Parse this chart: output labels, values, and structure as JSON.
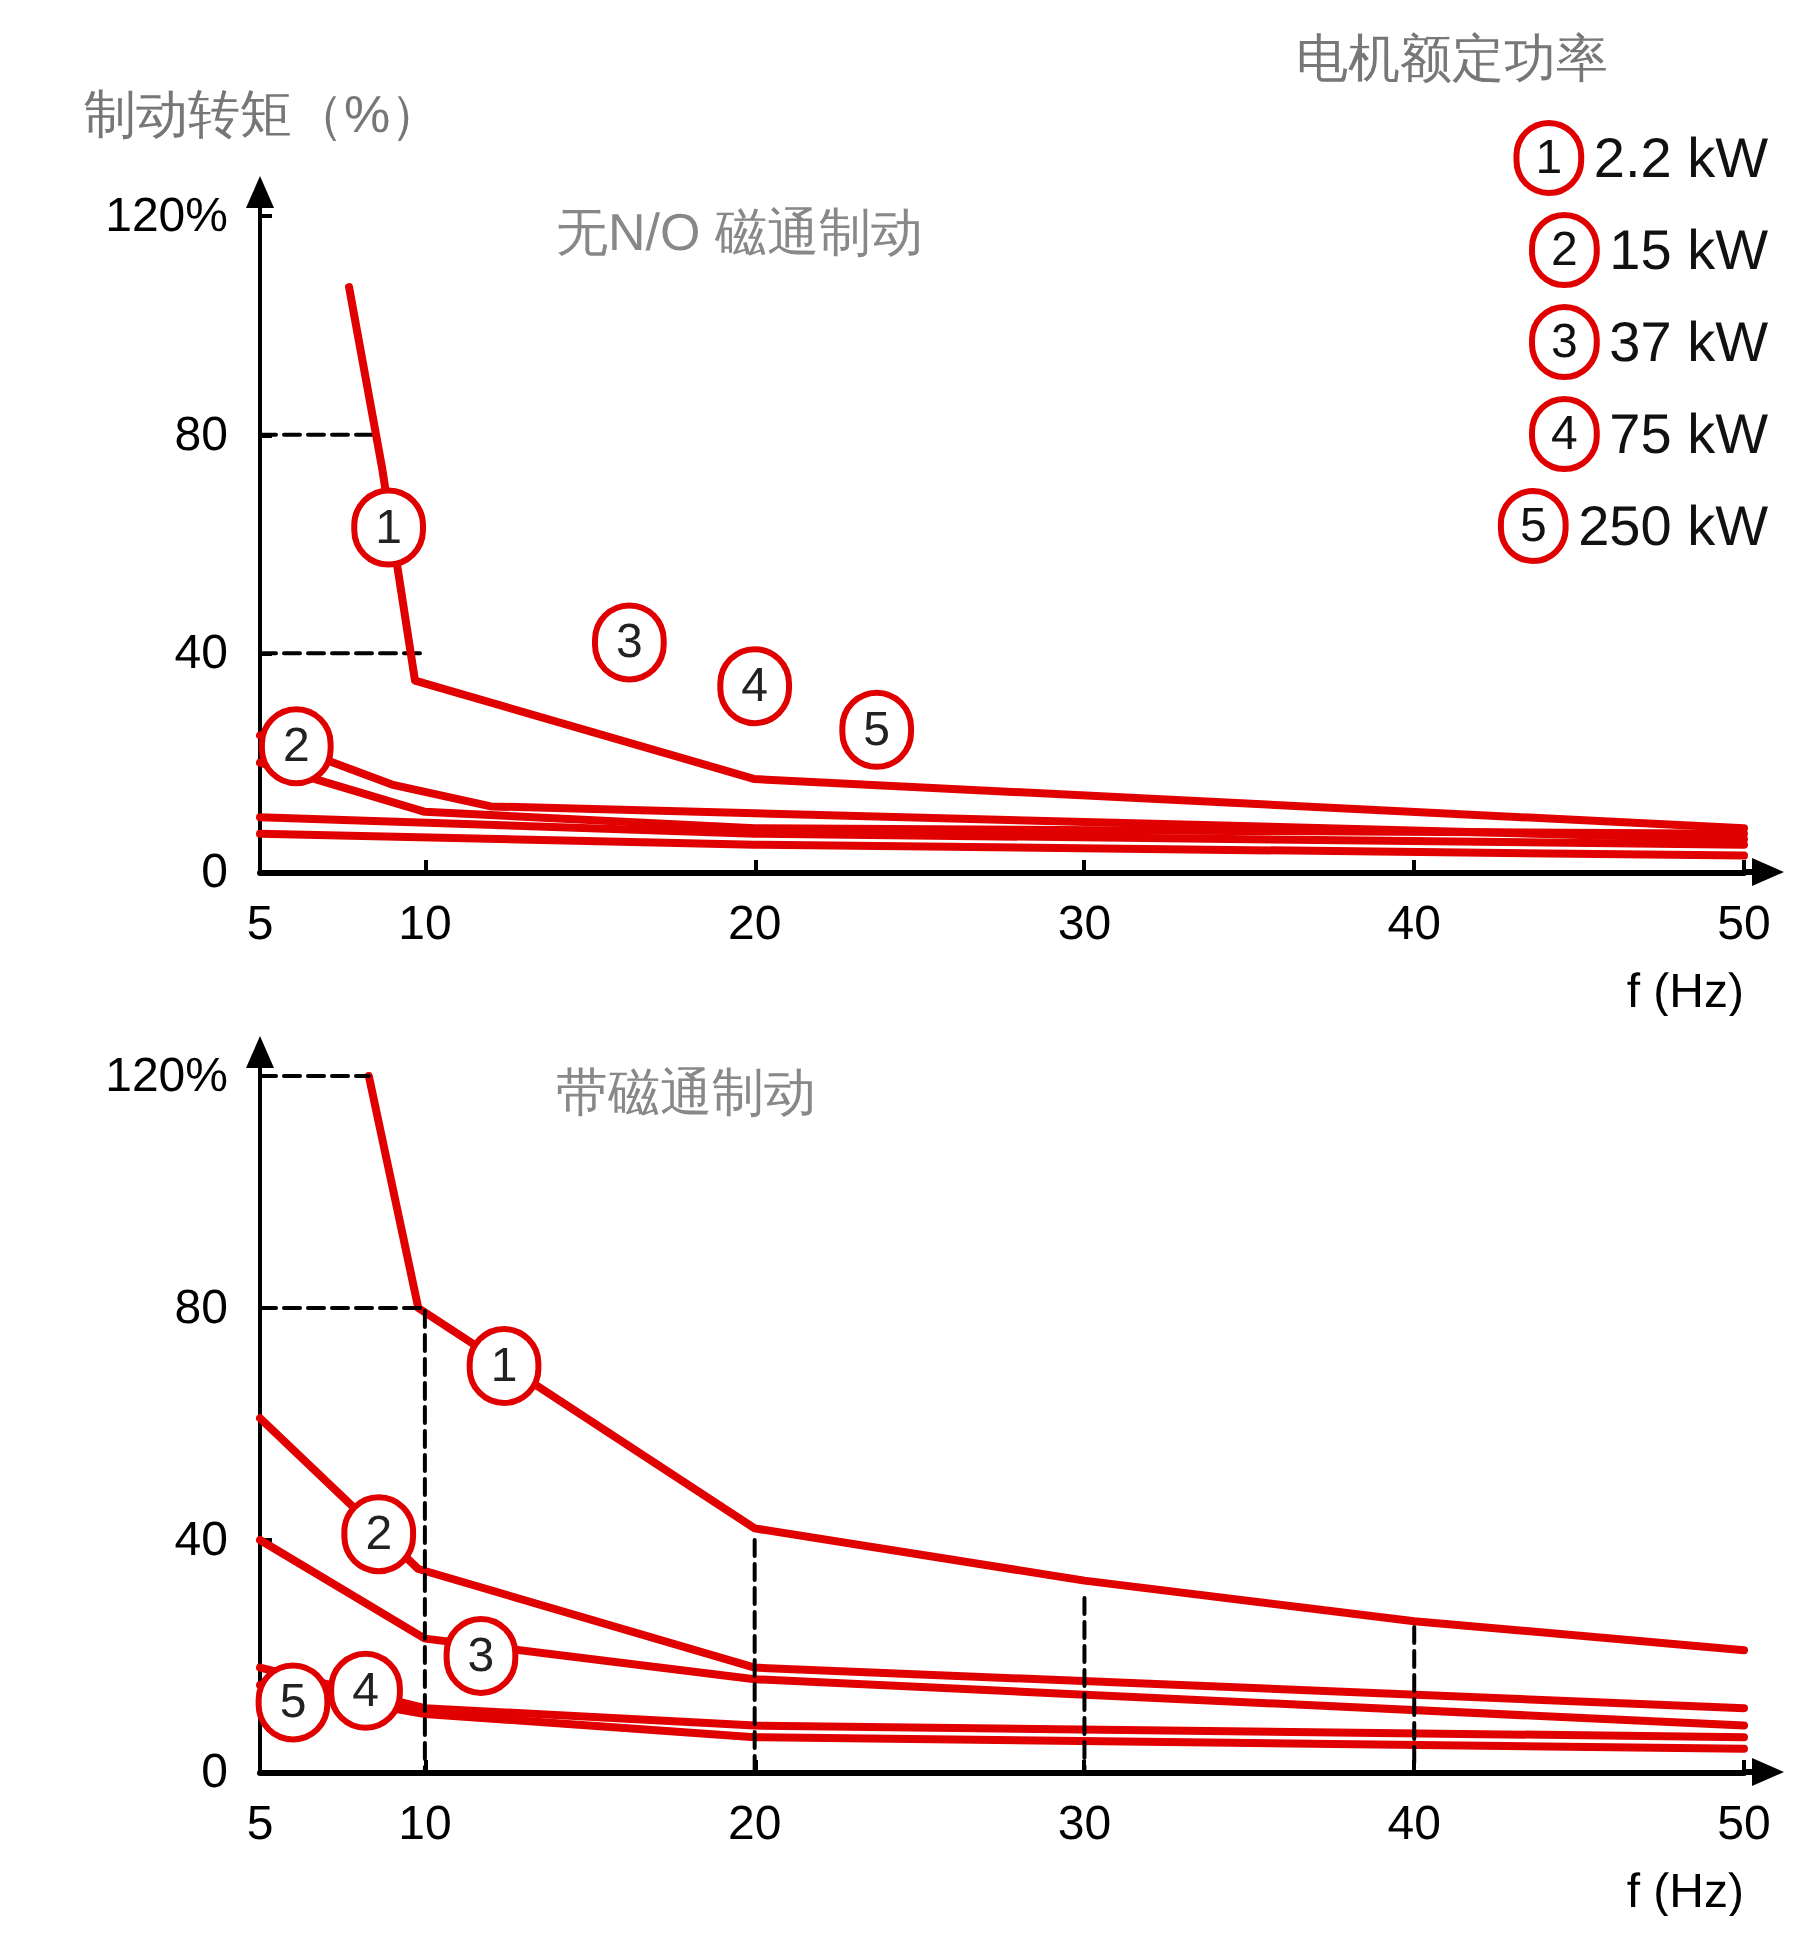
{
  "chart_data": [
    {
      "type": "line",
      "title": "无N/O 磁通制动",
      "ylabel": "制动转矩（%）",
      "xlabel": "f (Hz)",
      "legend_title": "电机额定功率",
      "legend": "top right",
      "marker": "none",
      "line_style": "solid",
      "xlim": [
        5,
        50
      ],
      "xticks": [
        5,
        10,
        20,
        30,
        40,
        50
      ],
      "ylim": [
        0,
        120
      ],
      "yticks": [
        0,
        40,
        80,
        {
          "value": 120,
          "label": "120%"
        }
      ],
      "series": [
        {
          "name": "2.2 kW",
          "color": "#e00000",
          "x": [
            7.7,
            8.7,
            9.7,
            20,
            50
          ],
          "values": [
            107,
            74,
            35,
            17,
            8
          ]
        },
        {
          "name": "15 kW",
          "color": "#e00000",
          "x": [
            5,
            9,
            12,
            50
          ],
          "values": [
            25,
            16,
            12,
            6
          ]
        },
        {
          "name": "37 kW",
          "color": "#e00000",
          "x": [
            5,
            10,
            20,
            50
          ],
          "values": [
            20,
            11,
            8,
            7
          ]
        },
        {
          "name": "75 kW",
          "color": "#e00000",
          "x": [
            5,
            20,
            50
          ],
          "values": [
            10,
            7,
            5
          ]
        },
        {
          "name": "250 kW",
          "color": "#e00000",
          "x": [
            5,
            20,
            50
          ],
          "values": [
            7,
            5,
            3
          ]
        },
        {
          "color": "#000000",
          "line_style": "dashed",
          "x": [
            5,
            8.5
          ],
          "values": [
            80,
            80
          ]
        },
        {
          "color": "#000000",
          "line_style": "dashed",
          "x": [
            5,
            10
          ],
          "values": [
            40,
            40
          ]
        }
      ],
      "annotations": [
        {
          "text": "1",
          "x": 8.9,
          "y": 63
        },
        {
          "text": "2",
          "x": 6.1,
          "y": 23
        },
        {
          "text": "3",
          "x": 16.2,
          "y": 42
        },
        {
          "text": "4",
          "x": 20,
          "y": 34
        },
        {
          "text": "5",
          "x": 23.7,
          "y": 26
        }
      ]
    },
    {
      "type": "line",
      "title": "带磁通制动",
      "xlabel": "f (Hz)",
      "marker": "none",
      "line_style": "solid",
      "xlim": [
        5,
        50
      ],
      "xticks": [
        5,
        10,
        20,
        30,
        40,
        50
      ],
      "ylim": [
        0,
        120
      ],
      "yticks": [
        0,
        40,
        80,
        {
          "value": 120,
          "label": "120%"
        }
      ],
      "series": [
        {
          "color": "#e00000",
          "x": [
            8.3,
            9.8,
            20,
            30,
            40,
            50
          ],
          "values": [
            120,
            80,
            42,
            33,
            26,
            21
          ]
        },
        {
          "color": "#e00000",
          "x": [
            5,
            9.8,
            20,
            50
          ],
          "values": [
            61,
            35,
            18,
            11
          ]
        },
        {
          "color": "#e00000",
          "x": [
            5,
            10,
            20,
            50
          ],
          "values": [
            40,
            23,
            16,
            8
          ]
        },
        {
          "color": "#e00000",
          "x": [
            5,
            10,
            20,
            50
          ],
          "values": [
            18,
            11,
            8,
            6
          ]
        },
        {
          "color": "#e00000",
          "x": [
            5,
            10,
            20,
            50
          ],
          "values": [
            15,
            10,
            6,
            4
          ]
        },
        {
          "color": "#000000",
          "line_style": "dashed",
          "x": [
            5,
            8.3
          ],
          "values": [
            120,
            120
          ]
        },
        {
          "color": "#000000",
          "line_style": "dashed",
          "x": [
            5,
            10,
            10
          ],
          "values": [
            80,
            80,
            0
          ]
        },
        {
          "color": "#000000",
          "line_style": "dashed",
          "x": [
            20,
            20
          ],
          "values": [
            40,
            0
          ]
        },
        {
          "color": "#000000",
          "line_style": "dashed",
          "x": [
            30,
            30
          ],
          "values": [
            30,
            0
          ]
        },
        {
          "color": "#000000",
          "line_style": "dashed",
          "x": [
            40,
            40
          ],
          "values": [
            25,
            0
          ]
        }
      ],
      "annotations": [
        {
          "text": "1",
          "x": 12.4,
          "y": 70
        },
        {
          "text": "2",
          "x": 8.6,
          "y": 41
        },
        {
          "text": "3",
          "x": 11.7,
          "y": 20
        },
        {
          "text": "4",
          "x": 8.2,
          "y": 14
        },
        {
          "text": "5",
          "x": 6,
          "y": 12
        }
      ]
    }
  ]
}
